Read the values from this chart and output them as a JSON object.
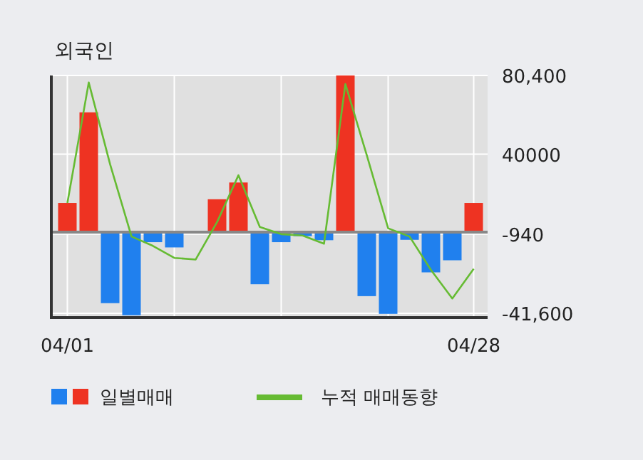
{
  "chart_data": {
    "type": "bar",
    "title": "외국인",
    "categories": [
      "04/01",
      null,
      null,
      null,
      null,
      null,
      null,
      null,
      null,
      null,
      null,
      null,
      null,
      null,
      null,
      null,
      null,
      null,
      null,
      "04/28"
    ],
    "series": [
      {
        "name": "일별매매",
        "colors": [
          "#ee3322",
          "#ee3322",
          "#2080ee",
          "#2080ee",
          "#2080ee",
          "#2080ee",
          "#2080ee",
          "#ee3322",
          "#ee3322",
          "#2080ee",
          "#2080ee",
          "#2080ee",
          "#2080ee",
          "#ee3322",
          "#2080ee",
          "#2080ee",
          "#2080ee",
          "#2080ee",
          "#2080ee",
          "#ee3322"
        ],
        "values": [
          15000,
          61500,
          -36400,
          -42600,
          -5100,
          -7800,
          0,
          16900,
          25500,
          -26700,
          -5100,
          -2000,
          -4100,
          80400,
          -32800,
          -41900,
          -3900,
          -20600,
          -14400,
          15000
        ]
      },
      {
        "name": "누적 매매동향",
        "type": "line",
        "color": "#66bb33",
        "values": [
          15000,
          76800,
          34800,
          -2200,
          -7000,
          -13200,
          -14000,
          5200,
          29200,
          2700,
          -1000,
          -1700,
          -5900,
          76000,
          39500,
          2000,
          -2200,
          -19300,
          -34000,
          -18800
        ]
      }
    ],
    "ylim": [
      -43800,
      80400
    ],
    "yticks": [
      {
        "value": 80400,
        "label": "80,400"
      },
      40000,
      -940,
      {
        "value": -41600,
        "label": "-41,600"
      }
    ],
    "grid": true,
    "legend": "bottom"
  }
}
